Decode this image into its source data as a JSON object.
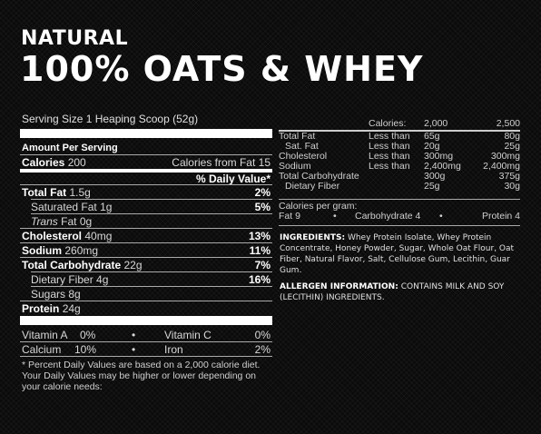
{
  "header": {
    "line1": "NATURAL",
    "line2": "100% OATS & WHEY"
  },
  "serving_size": "Serving Size 1 Heaping Scoop (52g)",
  "amount_per_serving": "Amount Per Serving",
  "calories": {
    "label": "Calories",
    "value": "200",
    "from_fat": "Calories from Fat 15"
  },
  "daily_value_header": "% Daily Value*",
  "nutrients": [
    {
      "label": "Total Fat",
      "amount": "1.5g",
      "dv": "2%"
    },
    {
      "label": "Saturated Fat",
      "amount": "1g",
      "dv": "5%"
    },
    {
      "label": "Trans",
      "suffix": "Fat 0g",
      "dv": ""
    },
    {
      "label": "Cholesterol",
      "amount": "40mg",
      "dv": "13%"
    },
    {
      "label": "Sodium",
      "amount": "260mg",
      "dv": "11%"
    },
    {
      "label": "Total Carbohydrate",
      "amount": "22g",
      "dv": "7%"
    },
    {
      "label": "Dietary Fiber",
      "amount": "4g",
      "dv": "16%"
    },
    {
      "label": "Sugars",
      "amount": "8g",
      "dv": ""
    },
    {
      "label": "Protein",
      "amount": "24g",
      "dv": ""
    }
  ],
  "vitamins": [
    {
      "name": "Vitamin A",
      "pct": "0%",
      "sep": "•",
      "name2": "Vitamin C",
      "pct2": "0%"
    },
    {
      "name": "Calcium",
      "pct": "10%",
      "sep": "•",
      "name2": "Iron",
      "pct2": "2%"
    }
  ],
  "footnote": "* Percent Daily Values are based on a 2,000 calorie diet. Your Daily Values may be higher or lower depending on your calorie needs:",
  "footnote_table": {
    "header": [
      "Calories:",
      "2,000",
      "2,500"
    ],
    "rows": [
      [
        "Total Fat",
        "Less than",
        "65g",
        "80g"
      ],
      [
        "Sat. Fat",
        "Less than",
        "20g",
        "25g"
      ],
      [
        "Cholesterol",
        "Less than",
        "300mg",
        "300mg"
      ],
      [
        "Sodium",
        "Less than",
        "2,400mg",
        "2,400mg"
      ],
      [
        "Total Carbohydrate",
        "",
        "300g",
        "375g"
      ],
      [
        "Dietary Fiber",
        "",
        "25g",
        "30g"
      ]
    ],
    "per_gram_label": "Calories per gram:",
    "per_gram": [
      "Fat 9",
      "•",
      "Carbohydrate 4",
      "•",
      "Protein 4"
    ]
  },
  "ingredients": {
    "label": "INGREDIENTS:",
    "text": "Whey Protein Isolate, Whey Protein Concentrate, Honey Powder, Sugar, Whole Oat Flour, Oat Fiber, Natural Flavor, Salt, Cellulose Gum, Lecithin, Guar Gum."
  },
  "allergen": {
    "label": "ALLERGEN INFORMATION:",
    "text": "CONTAINS MILK AND SOY (LECITHIN) INGREDIENTS."
  }
}
